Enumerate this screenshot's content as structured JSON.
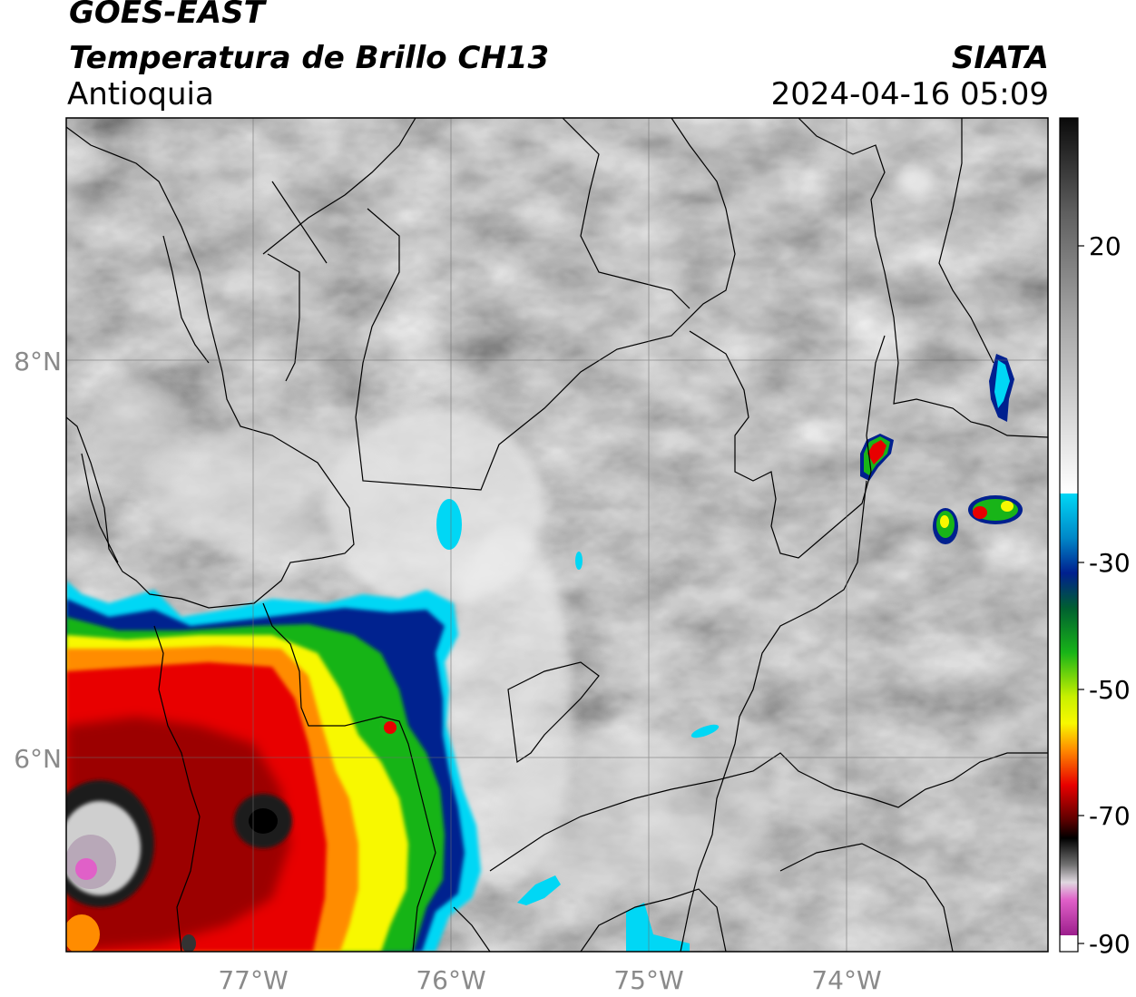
{
  "header": {
    "satellite": "GOES-EAST",
    "product": "Temperatura de Brillo CH13",
    "region": "Antioquia",
    "agency": "SIATA",
    "datetime": "2024-04-16 05:09"
  },
  "map": {
    "lon_ticks": [
      "77°W",
      "76°W",
      "75°W",
      "74°W"
    ],
    "lat_ticks": [
      "8°N",
      "6°N"
    ]
  },
  "colorbar": {
    "tick_labels": [
      "20",
      "-30",
      "-50",
      "-70",
      "-90"
    ],
    "colors": {
      "warm": "#0a0a0a",
      "neutral": "#ffffff",
      "cyan": "#00d7f5",
      "blue": "#00208f",
      "green": "#18b418",
      "yellow": "#f8f800",
      "orange": "#ff8c00",
      "red": "#e80000",
      "darkred": "#5a0000",
      "black": "#000000",
      "pink": "#e060c8",
      "purple": "#9c1e8c"
    }
  }
}
